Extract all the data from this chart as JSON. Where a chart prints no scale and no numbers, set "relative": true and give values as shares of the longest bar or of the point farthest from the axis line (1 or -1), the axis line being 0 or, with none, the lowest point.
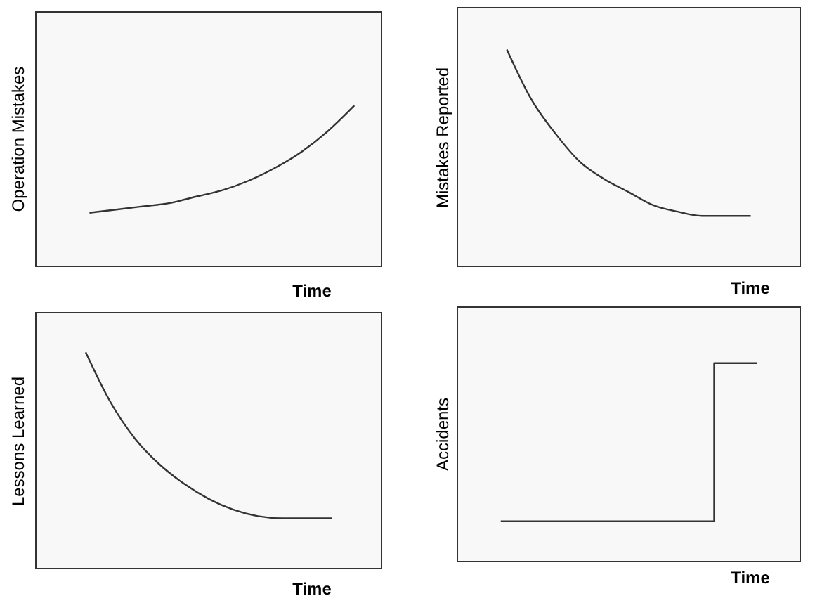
{
  "chart_data": [
    {
      "type": "line",
      "xlabel": "Time",
      "ylabel": "Operation Mistakes",
      "relative": true,
      "color": "#333333",
      "categories": [
        null,
        null,
        null,
        null,
        null,
        null,
        null,
        null,
        null,
        null,
        null,
        null,
        null,
        null
      ],
      "values": [
        null,
        null,
        0.33,
        0.35,
        0.37,
        0.39,
        0.43,
        0.47,
        0.53,
        0.61,
        0.71,
        0.84,
        1,
        null
      ]
    },
    {
      "type": "line",
      "xlabel": "Time",
      "ylabel": "Mistakes Reported",
      "relative": true,
      "color": "#333333",
      "categories": [
        null,
        null,
        null,
        null,
        null,
        null,
        null,
        null,
        null,
        null,
        null,
        null,
        null,
        null,
        null
      ],
      "values": [
        null,
        null,
        1,
        0.77,
        0.61,
        0.48,
        0.4,
        0.34,
        0.28,
        0.25,
        0.23,
        0.23,
        0.23,
        null,
        null
      ]
    },
    {
      "type": "line",
      "xlabel": "Time",
      "ylabel": "Lessons Learned",
      "relative": true,
      "color": "#333333",
      "categories": [
        null,
        null,
        null,
        null,
        null,
        null,
        null,
        null,
        null,
        null,
        null,
        null,
        null,
        null,
        null
      ],
      "values": [
        null,
        null,
        1,
        0.77,
        0.6,
        0.48,
        0.39,
        0.32,
        0.27,
        0.24,
        0.23,
        0.23,
        0.23,
        null,
        null
      ]
    },
    {
      "type": "step",
      "xlabel": "Time",
      "ylabel": "Accidents",
      "relative": true,
      "color": "#333333",
      "categories": [
        null,
        null,
        null,
        null,
        null,
        null,
        null,
        null,
        null
      ],
      "values": [
        null,
        0.2,
        0.2,
        0.2,
        0.2,
        0.2,
        1,
        1,
        null
      ]
    }
  ]
}
